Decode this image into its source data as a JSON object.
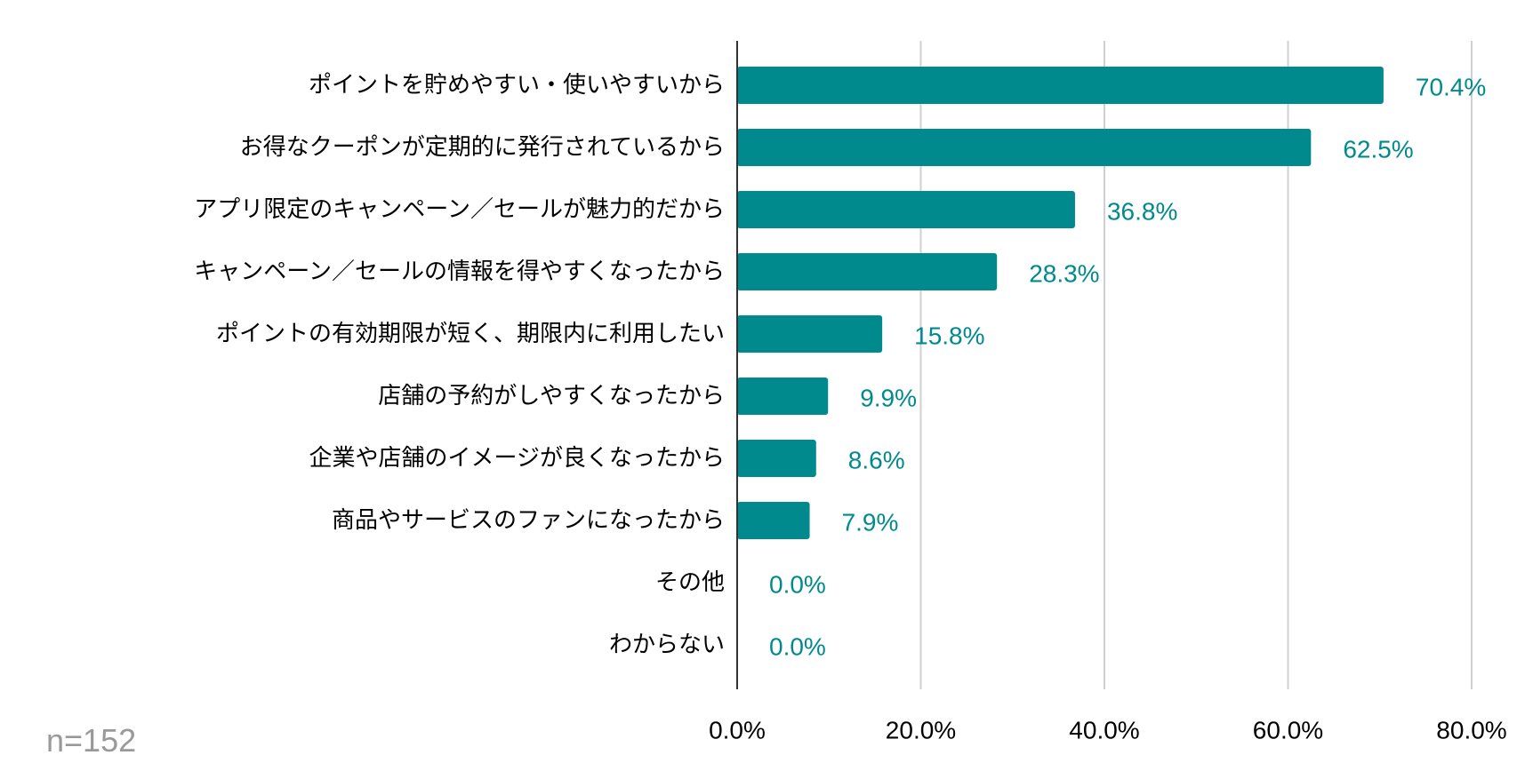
{
  "chart_data": {
    "type": "bar",
    "orientation": "horizontal",
    "categories": [
      "ポイントを貯めやすい・使いやすいから",
      "お得なクーポンが定期的に発行されているから",
      "アプリ限定のキャンペーン／セールが魅力的だから",
      "キャンペーン／セールの情報を得やすくなったから",
      "ポイントの有効期限が短く、期限内に利用したい",
      "店舗の予約がしやすくなったから",
      "企業や店舗のイメージが良くなったから",
      "商品やサービスのファンになったから",
      "その他",
      "わからない"
    ],
    "values": [
      70.4,
      62.5,
      36.8,
      28.3,
      15.8,
      9.9,
      8.6,
      7.9,
      0.0,
      0.0
    ],
    "value_labels": [
      "70.4%",
      "62.5%",
      "36.8%",
      "28.3%",
      "15.8%",
      "9.9%",
      "8.6%",
      "7.9%",
      "0.0%",
      "0.0%"
    ],
    "x_ticks": [
      0,
      20,
      40,
      60,
      80
    ],
    "x_tick_labels": [
      "0.0%",
      "20.0%",
      "40.0%",
      "60.0%",
      "80.0%"
    ],
    "xlim": [
      0,
      80
    ],
    "grid": true,
    "bar_color": "#008a8e",
    "label_color": "#008a8e"
  },
  "note": "n=152"
}
